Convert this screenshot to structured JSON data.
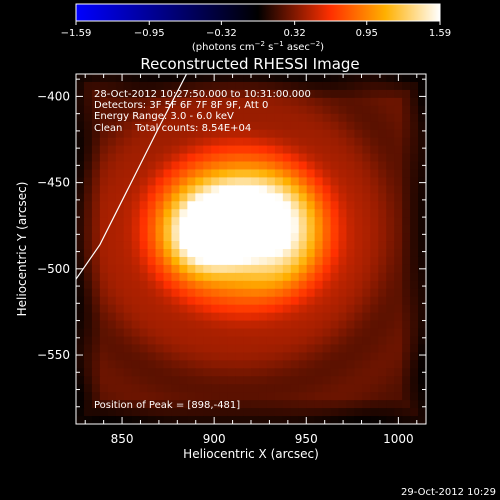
{
  "chart_data": {
    "type": "heatmap",
    "title": "Reconstructed RHESSI Image",
    "xlabel": "Heliocentric X (arcsec)",
    "ylabel": "Heliocentric Y (arcsec)",
    "x_ticks": [
      "850",
      "900",
      "950",
      "1000"
    ],
    "y_ticks": [
      "−400",
      "−450",
      "−500",
      "−550"
    ],
    "xlim": [
      825,
      1015
    ],
    "ylim": [
      -590,
      -387
    ],
    "colorbar": {
      "range": [
        -1.59,
        1.59
      ],
      "ticks": [
        "−1.59",
        "−0.95",
        "−0.32",
        "0.32",
        "0.95",
        "1.59"
      ],
      "label_parts": [
        "(photons cm",
        "−2",
        " s",
        "−1",
        " asec",
        "−2",
        ")"
      ],
      "colormap": [
        "#0000ff",
        "#000000",
        "#ff3000",
        "#ffb000",
        "#ffffff"
      ]
    },
    "annotations": [
      "28-Oct-2012 10:27:50.000 to 10:31:00.000",
      "Detectors: 3F 5F 6F 7F 8F 9F, Att 0",
      "Energy Range: 3.0 - 6.0 keV",
      "Clean    Total counts: 8.54E+04"
    ],
    "peak_label": "Position of Peak = [898,-481]",
    "peak": [
      898,
      -481
    ],
    "sources": [
      {
        "x": 898,
        "y": -481,
        "amp": 1.55,
        "sx": 14,
        "sy": 13
      },
      {
        "x": 912,
        "y": -465,
        "amp": 1.05,
        "sx": 18,
        "sy": 13
      },
      {
        "x": 932,
        "y": -480,
        "amp": 0.9,
        "sx": 17,
        "sy": 19
      },
      {
        "x": 912,
        "y": -478,
        "amp": 0.7,
        "sx": 38,
        "sy": 36
      }
    ],
    "background_level": 0.18,
    "limb_curve_points": [
      [
        825,
        -506
      ],
      [
        838,
        -486
      ],
      [
        854,
        -452
      ],
      [
        870,
        -418
      ],
      [
        885,
        -387
      ]
    ],
    "limb_color": "#ffffff"
  },
  "footer_timestamp": "29-Oct-2012 10:29"
}
